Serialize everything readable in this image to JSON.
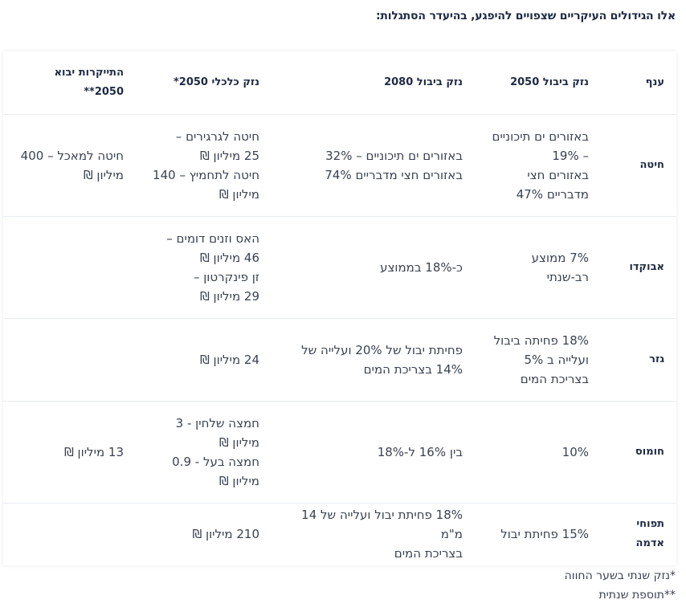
{
  "heading": "אלו הגידולים העיקריים שצפויים להיפגע, בהיעדר הסתגלות:",
  "table": {
    "headers": [
      "ענף",
      "נזק ביבול 2050",
      "נזק ביבול 2080",
      "נזק כלכלי 2050*",
      "התייקרות יבוא 2050**"
    ],
    "rows": [
      {
        "crop": "חיטה",
        "y2050": [
          "באזורים ים תיכוניים",
          "– 19%",
          "באזורים חצי",
          "מדבריים 47%"
        ],
        "y2080": [
          "באזורים ים תיכוניים – 32%",
          "באזורים חצי מדבריים 74%"
        ],
        "econ": [
          "חיטה לגרגירים –",
          "25 מיליון ₪",
          "חיטה לתחמיץ – 140",
          "מיליון ₪"
        ],
        "import": [
          "חיטה למאכל – 400",
          "מיליון ₪"
        ]
      },
      {
        "crop": "אבוקדו",
        "y2050": [
          "7% ממוצע רב-שנתי"
        ],
        "y2080": [
          "כ-18% בממוצע"
        ],
        "econ": [
          "האס וזנים דומים –",
          "46 מיליון ₪",
          "זן פינקרטון –",
          "29 מיליון ₪"
        ],
        "import": []
      },
      {
        "crop": "גזר",
        "y2050": [
          "18% פחיתה ביבול",
          "ועלייה ב 5%",
          "בצריכת המים"
        ],
        "y2080": [
          "פחיתת יבול של 20% ועלייה של",
          "14% בצריכת המים"
        ],
        "econ": [
          "24 מיליון ₪"
        ],
        "import": []
      },
      {
        "crop": "חומוס",
        "y2050": [
          "10%"
        ],
        "y2080": [
          "בין 16% ל-18%"
        ],
        "econ": [
          "חמצה שלחין - 3",
          "מיליון ₪",
          "חמצה בעל - 0.9",
          "מיליון ₪"
        ],
        "import": [
          "13 מיליון ₪"
        ]
      },
      {
        "crop": "תפוחי אדמה",
        "y2050": [
          "15% פחיתת יבול"
        ],
        "y2080": [
          "18% פחיתת יבול ועלייה של 14 מ\"מ",
          "בצריכת המים"
        ],
        "econ": [
          "210 מיליון ₪"
        ],
        "import": []
      }
    ]
  },
  "notes": [
    "*נזק שנתי בשער החווה",
    "**תוספת שנתית"
  ]
}
